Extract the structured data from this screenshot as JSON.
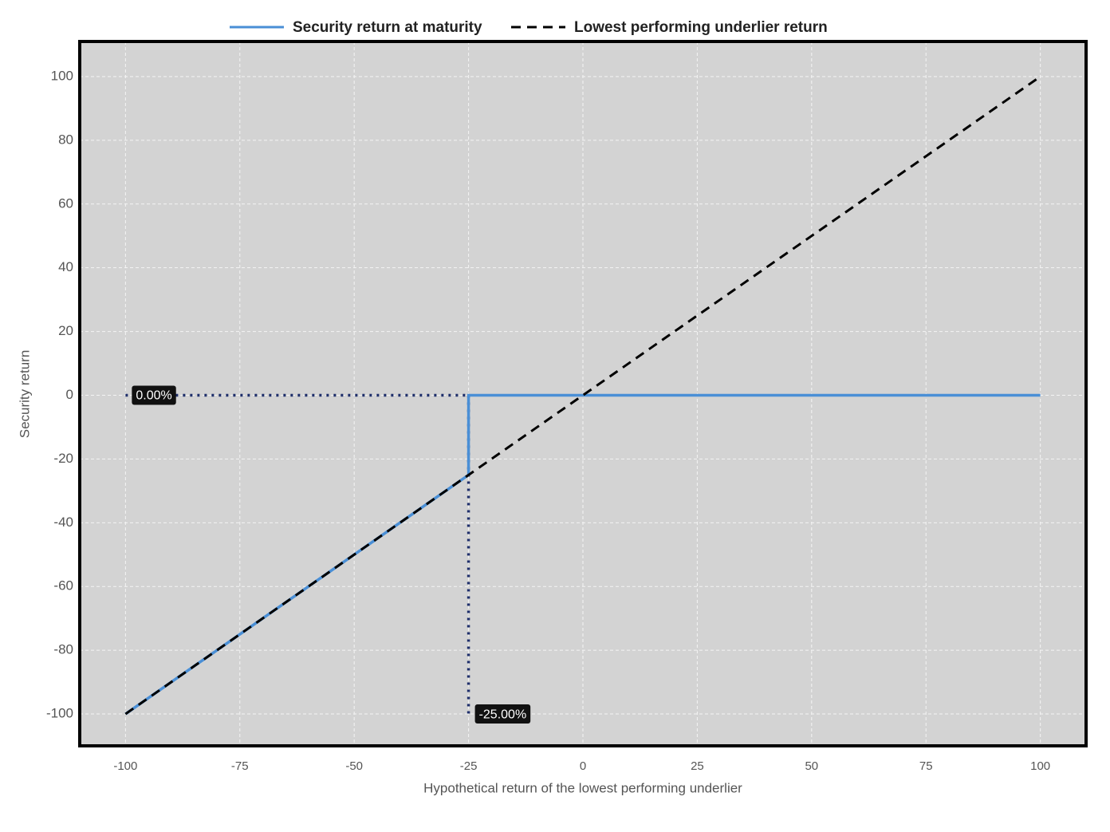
{
  "chart_data": {
    "type": "line",
    "xlabel": "Hypothetical return of the lowest performing underlier",
    "ylabel": "Security return",
    "xlim": [
      -110,
      110
    ],
    "ylim": [
      -110,
      111
    ],
    "xticks": [
      -100,
      -75,
      -50,
      -25,
      0,
      25,
      50,
      75,
      100
    ],
    "yticks": [
      -100,
      -80,
      -60,
      -40,
      -20,
      0,
      20,
      40,
      60,
      80,
      100
    ],
    "grid": true,
    "legend": "top",
    "series": [
      {
        "name": "Security return at maturity",
        "color": "#4a8fd6",
        "style": "solid",
        "x": [
          -100,
          -25,
          -25,
          100
        ],
        "values": [
          -100,
          -25,
          0,
          0
        ]
      },
      {
        "name": "Lowest performing underlier return",
        "color": "#000000",
        "style": "dashed",
        "x": [
          -100,
          100
        ],
        "values": [
          -100,
          100
        ]
      }
    ],
    "annotations": [
      {
        "x": -100,
        "y": 0,
        "label": "0.00%"
      },
      {
        "x": -25,
        "y": -100,
        "label": "-25.00%"
      }
    ],
    "guide_color": "#1f2f6b"
  }
}
